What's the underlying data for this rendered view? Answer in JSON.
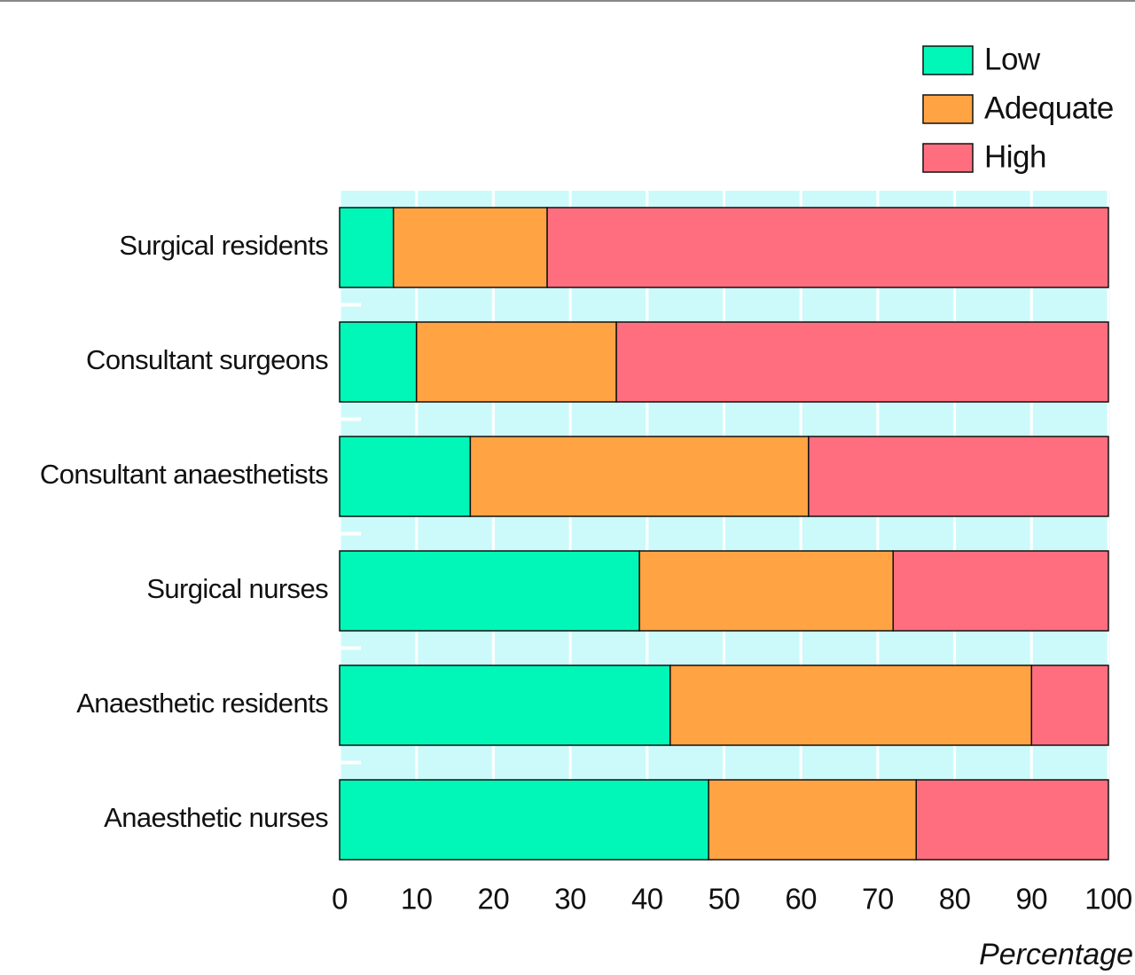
{
  "chart_data": {
    "type": "stacked-barh",
    "categories": [
      "Surgical residents",
      "Consultant surgeons",
      "Consultant anaesthetists",
      "Surgical nurses",
      "Anaesthetic residents",
      "Anaesthetic nurses"
    ],
    "series": [
      {
        "name": "Low",
        "color": "#00f7b8",
        "values": [
          7,
          10,
          17,
          39,
          43,
          48
        ]
      },
      {
        "name": "Adequate",
        "color": "#ffa343",
        "values": [
          20,
          26,
          44,
          33,
          47,
          27
        ]
      },
      {
        "name": "High",
        "color": "#ff6e7f",
        "values": [
          73,
          64,
          39,
          28,
          10,
          25
        ]
      }
    ],
    "xlabel": "Percentage",
    "xlim": [
      0,
      100
    ],
    "xticks": [
      0,
      10,
      20,
      30,
      40,
      50,
      60,
      70,
      80,
      90,
      100
    ],
    "grid": true,
    "legend": "top-right"
  }
}
